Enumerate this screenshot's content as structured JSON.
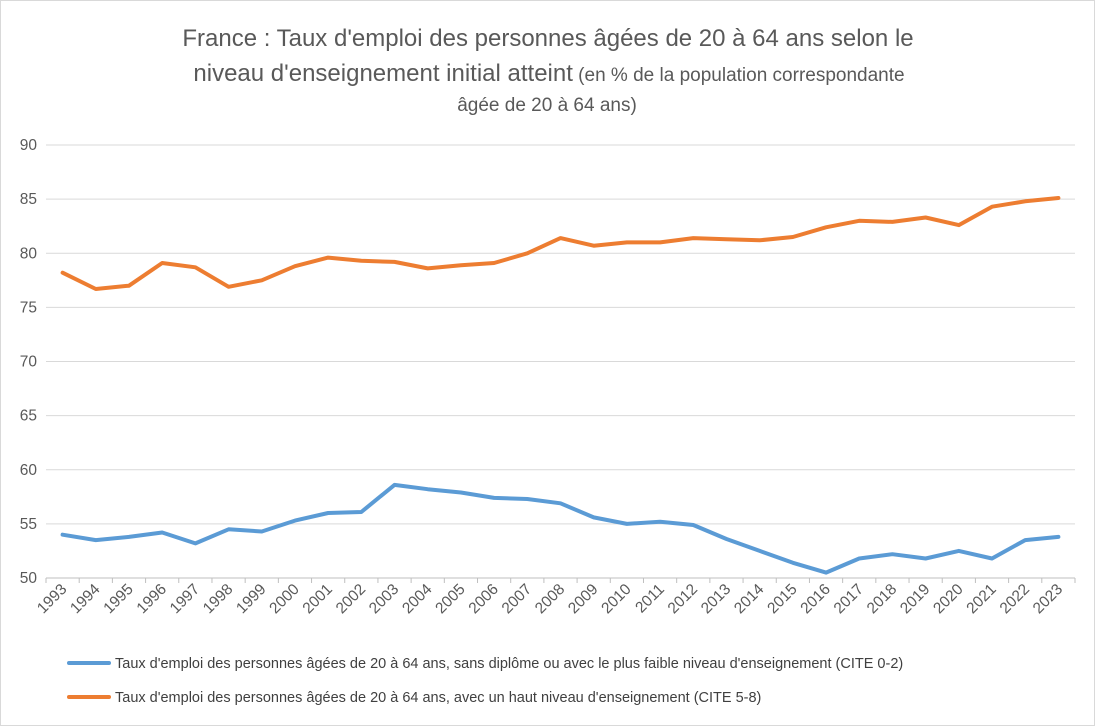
{
  "chart_data": {
    "type": "line",
    "title": {
      "line1": "France : Taux d'emploi des personnes âgées de 20 à 64 ans selon le",
      "line2_main": "niveau d'enseignement  initial atteint",
      "line2_sub": " (en % de la population correspondante",
      "line3_sub": "âgée de 20 à 64 ans)"
    },
    "xlabel": "",
    "ylabel": "",
    "ylim": [
      50,
      90
    ],
    "yticks": [
      90,
      85,
      80,
      75,
      70,
      65,
      60,
      55,
      50
    ],
    "grid": true,
    "legend_position": "bottom",
    "categories": [
      "1993",
      "1994",
      "1995",
      "1996",
      "1997",
      "1998",
      "1999",
      "2000",
      "2001",
      "2002",
      "2003",
      "2004",
      "2005",
      "2006",
      "2007",
      "2008",
      "2009",
      "2010",
      "2011",
      "2012",
      "2013",
      "2014",
      "2015",
      "2016",
      "2017",
      "2018",
      "2019",
      "2020",
      "2021",
      "2022",
      "2023"
    ],
    "series": [
      {
        "name": "Taux d'emploi des personnes âgées de 20 à 64 ans, sans diplôme ou avec le plus faible niveau d'enseignement  (CITE 0-2)",
        "color": "#5b9bd5",
        "values": [
          54.0,
          53.5,
          53.8,
          54.2,
          53.2,
          54.5,
          54.3,
          55.3,
          56.0,
          56.1,
          58.6,
          58.2,
          57.9,
          57.4,
          57.3,
          56.9,
          55.6,
          55.0,
          55.2,
          54.9,
          53.6,
          52.5,
          51.4,
          50.5,
          51.8,
          52.2,
          51.8,
          52.5,
          51.8,
          53.5,
          53.8
        ]
      },
      {
        "name": "Taux d'emploi des personnes âgées de 20 à 64 ans, avec un haut niveau d'enseignement (CITE 5-8)",
        "color": "#ed7d31",
        "values": [
          78.2,
          76.7,
          77.0,
          79.1,
          78.7,
          76.9,
          77.5,
          78.8,
          79.6,
          79.3,
          79.2,
          78.6,
          78.9,
          79.1,
          80.0,
          81.4,
          80.7,
          81.0,
          81.0,
          81.4,
          81.3,
          81.2,
          81.5,
          82.4,
          83.0,
          82.9,
          83.3,
          82.6,
          84.3,
          84.8,
          85.1
        ]
      }
    ]
  }
}
